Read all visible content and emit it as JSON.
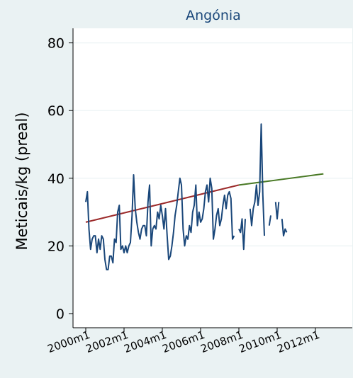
{
  "chart_data": {
    "type": "line",
    "title": "Angónia",
    "ylabel": "Meticais/kg (preal)",
    "xlabel": "",
    "ylim": [
      0,
      80
    ],
    "yticks": [
      0,
      20,
      40,
      60,
      80
    ],
    "x_range": [
      "2000m1",
      "2012m6"
    ],
    "xticks": [
      "2000m1",
      "2002m1",
      "2004m1",
      "2006m1",
      "2008m1",
      "2010m1",
      "2012m1"
    ],
    "grid": true,
    "legend": "none",
    "series": [
      {
        "kind": "observed",
        "color": "#1a477a",
        "values": [
          33,
          36,
          25,
          19,
          22,
          23,
          23,
          18,
          22,
          19,
          23,
          22,
          16,
          13,
          13,
          17,
          17,
          15,
          22,
          21,
          30,
          32,
          19,
          20,
          18,
          20,
          18,
          20,
          21,
          29,
          41,
          31,
          27,
          24,
          22,
          25,
          26,
          26,
          23,
          33,
          38,
          20,
          25,
          26,
          25,
          30,
          28,
          32,
          29,
          25,
          31,
          23,
          16,
          17,
          20,
          24,
          29,
          32,
          36,
          40,
          38,
          25,
          20,
          23,
          22,
          26,
          24,
          30,
          32,
          38,
          26,
          30,
          27,
          28,
          31,
          36,
          38,
          33,
          40,
          37,
          22,
          25,
          29,
          31,
          26,
          28,
          32,
          35,
          31,
          35,
          36,
          34,
          22,
          23,
          null,
          null,
          25,
          24,
          28,
          19,
          28,
          null,
          null,
          31,
          26,
          31,
          33,
          38,
          32,
          36,
          56,
          35,
          23,
          null,
          null,
          26,
          29,
          null,
          null,
          33,
          28,
          33,
          null,
          28,
          23,
          25,
          24
        ],
        "start": "2000m1"
      },
      {
        "kind": "trend",
        "color": "#9c2b2b",
        "points": [
          [
            "2000m1",
            27
          ],
          [
            "2008m1",
            38
          ]
        ]
      },
      {
        "kind": "trend",
        "color": "#4a7a26",
        "points": [
          [
            "2008m1",
            38
          ],
          [
            "2012m6",
            41.3
          ]
        ]
      }
    ]
  }
}
